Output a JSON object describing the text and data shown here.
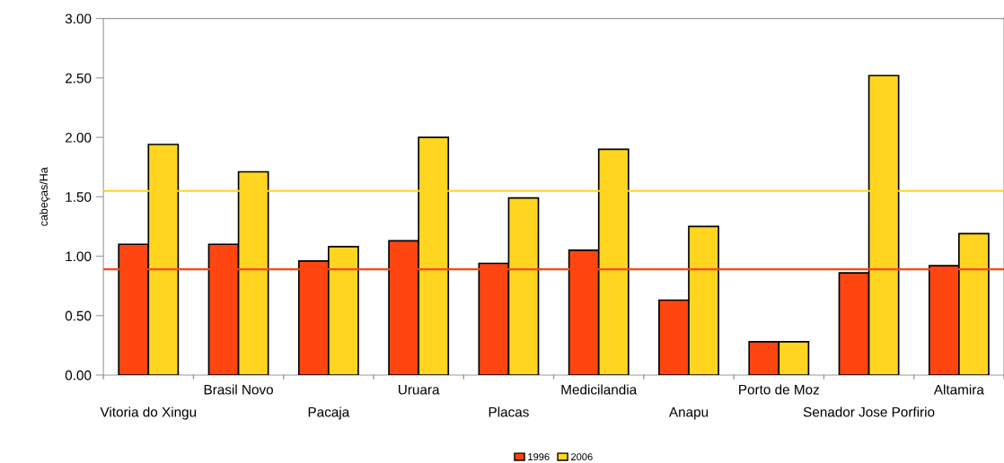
{
  "chart_data": {
    "type": "bar",
    "ylabel": "cabeças/Ha",
    "categories": [
      "Vitoria do Xingu",
      "Brasil Novo",
      "Pacaja",
      "Uruara",
      "Placas",
      "Medicilandia",
      "Anapu",
      "Porto de Moz",
      "Senador Jose Porfirio",
      "Altamira"
    ],
    "series": [
      {
        "name": "1996",
        "color": "#ff4510",
        "values": [
          1.1,
          1.1,
          0.96,
          1.13,
          0.94,
          1.05,
          0.63,
          0.28,
          0.86,
          0.92
        ]
      },
      {
        "name": "2006",
        "color": "#ffd520",
        "values": [
          1.94,
          1.71,
          1.08,
          2.0,
          1.49,
          1.9,
          1.25,
          0.28,
          2.52,
          1.19
        ]
      }
    ],
    "ylim": [
      0,
      3
    ],
    "yticks": [
      {
        "value": 0,
        "label": "0.00"
      },
      {
        "value": 0.5,
        "label": "0.50"
      },
      {
        "value": 1,
        "label": "1.00"
      },
      {
        "value": 1.5,
        "label": "1.50"
      },
      {
        "value": 2,
        "label": "2.00"
      },
      {
        "value": 2.5,
        "label": "2.50"
      },
      {
        "value": 3,
        "label": "3.00"
      }
    ],
    "ref_lines": [
      {
        "axis": "y",
        "value": 1.55,
        "color": "#ffd520"
      },
      {
        "axis": "y",
        "value": 0.89,
        "color": "#ff4510"
      }
    ],
    "grid": false,
    "legend": "bottom"
  }
}
